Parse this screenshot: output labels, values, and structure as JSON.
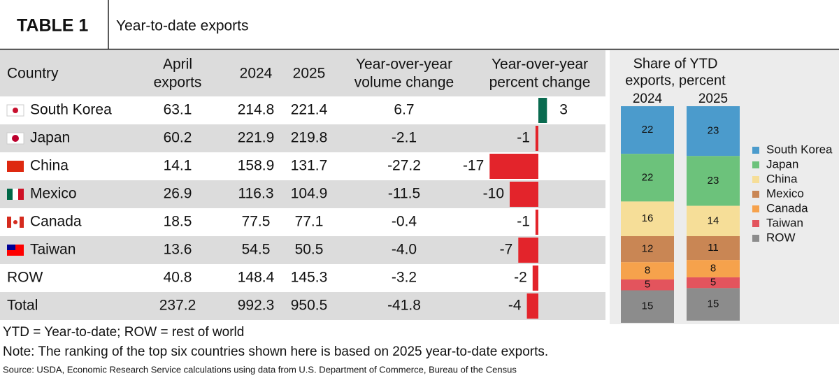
{
  "header": {
    "label": "TABLE 1",
    "title": "Year-to-date exports"
  },
  "table": {
    "columns": [
      [
        "Country"
      ],
      [
        "April",
        "exports"
      ],
      [
        "2024"
      ],
      [
        "2025"
      ],
      [
        "Year-over-year",
        "volume change"
      ],
      [
        "Year-over-year",
        "percent change"
      ]
    ],
    "rows": [
      [
        "South Korea",
        "63.1",
        "214.8",
        "221.4",
        "6.7",
        3
      ],
      [
        "Japan",
        "60.2",
        "221.9",
        "219.8",
        "-2.1",
        -1
      ],
      [
        "China",
        "14.1",
        "158.9",
        "131.7",
        "-27.2",
        -17
      ],
      [
        "Mexico",
        "26.9",
        "116.3",
        "104.9",
        "-11.5",
        -10
      ],
      [
        "Canada",
        "18.5",
        "77.5",
        "77.1",
        "-0.4",
        -1
      ],
      [
        "Taiwan",
        "13.6",
        "54.5",
        "50.5",
        "-4.0",
        -7
      ],
      [
        "ROW",
        "40.8",
        "148.4",
        "145.3",
        "-3.2",
        -2
      ],
      [
        "Total",
        "237.2",
        "992.3",
        "950.5",
        "-41.8",
        -4
      ]
    ]
  },
  "share": {
    "title": [
      "Share of YTD",
      "exports, percent"
    ],
    "years": [
      "2024",
      "2025"
    ],
    "series": [
      {
        "name": "South Korea",
        "color": "#4b9bcc",
        "values": [
          22,
          23
        ]
      },
      {
        "name": "Japan",
        "color": "#6cc27b",
        "values": [
          22,
          23
        ]
      },
      {
        "name": "China",
        "color": "#f6de98",
        "values": [
          16,
          14
        ]
      },
      {
        "name": "Mexico",
        "color": "#c98654",
        "values": [
          12,
          11
        ]
      },
      {
        "name": "Canada",
        "color": "#f6a24c",
        "values": [
          8,
          8
        ]
      },
      {
        "name": "Taiwan",
        "color": "#e3545d",
        "values": [
          5,
          5
        ]
      },
      {
        "name": "ROW",
        "color": "#8c8c8c",
        "values": [
          15,
          15
        ]
      }
    ]
  },
  "notes": [
    "YTD = Year-to-date; ROW = rest of world",
    "Note: The ranking of the top six countries shown here is based on 2025 year-to-date exports."
  ],
  "source": "Source: USDA, Economic Research Service calculations using data from U.S. Department of Commerce, Bureau of the Census"
}
